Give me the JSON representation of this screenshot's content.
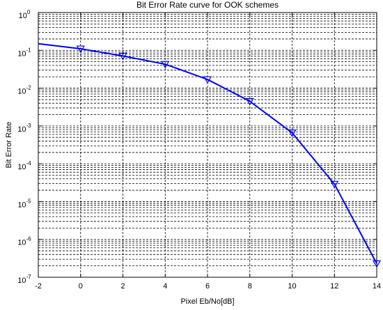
{
  "chart_data": {
    "type": "line",
    "title": "Bit Error Rate curve for OOK schemes",
    "x_label": "Pixel Eb/No[dB]",
    "y_label": "Bit Error Rate",
    "x": [
      -2,
      0,
      2,
      4,
      6,
      8,
      10,
      12,
      14
    ],
    "series": [
      {
        "color": "#0000ff",
        "values": [
          0.15,
          0.11,
          0.071,
          0.043,
          0.017,
          0.0045,
          0.00066,
          2.9e-05,
          2.3e-07
        ]
      }
    ],
    "xlim": [
      -2,
      14
    ],
    "xticks": [
      -2,
      0,
      2,
      4,
      6,
      8,
      10,
      12,
      14
    ],
    "ylim": [
      1e-07,
      1
    ],
    "y_scale": "log",
    "yticks": [
      {
        "value": 1,
        "label": "10^0"
      },
      {
        "value": 0.1,
        "label": "10^-1"
      },
      {
        "value": 0.01,
        "label": "10^-2"
      },
      {
        "value": 0.001,
        "label": "10^-3"
      },
      {
        "value": 0.0001,
        "label": "10^-4"
      },
      {
        "value": 1e-05,
        "label": "10^-5"
      },
      {
        "value": 1e-06,
        "label": "10^-6"
      },
      {
        "value": 1e-07,
        "label": "10^-7"
      }
    ],
    "grid": true
  }
}
